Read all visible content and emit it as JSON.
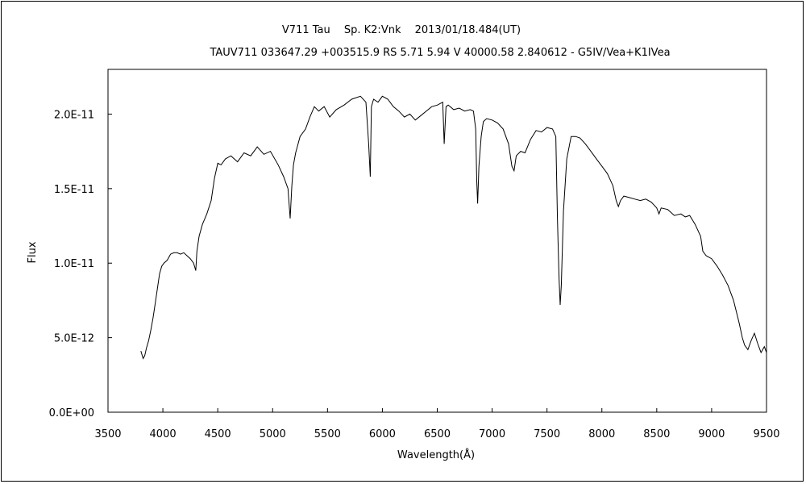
{
  "chart_data": {
    "type": "line",
    "title": "V711 Tau　 Sp. K2:Vnk　 2013/01/18.484(UT)",
    "subtitle": "TAUV711 033647.29 +003515.9 RS 5.71 5.94 V 40000.58 2.840612 - G5IV/Vea+K1IVea",
    "xlabel": "Wavelength(Å)",
    "ylabel": "Flux",
    "xlim": [
      3500,
      9500
    ],
    "ylim": [
      0,
      2.3e-11
    ],
    "x_ticks": [
      3500,
      4000,
      4500,
      5000,
      5500,
      6000,
      6500,
      7000,
      7500,
      8000,
      8500,
      9000,
      9500
    ],
    "x_tick_labels": [
      "3500",
      "4000",
      "4500",
      "5000",
      "5500",
      "6000",
      "6500",
      "7000",
      "7500",
      "8000",
      "8500",
      "9000",
      "9500"
    ],
    "y_ticks": [
      0,
      5e-12,
      1e-11,
      1.5e-11,
      2e-11
    ],
    "y_tick_labels": [
      "0.0E+00",
      "5.0E-12",
      "1.0E-11",
      "1.5E-11",
      "2.0E-11"
    ],
    "grid": false,
    "legend": "none",
    "series": [
      {
        "color": "#000000",
        "x": [
          3800,
          3820,
          3835,
          3850,
          3870,
          3890,
          3910,
          3930,
          3950,
          3970,
          3990,
          4010,
          4040,
          4070,
          4100,
          4130,
          4160,
          4190,
          4220,
          4250,
          4280,
          4300,
          4310,
          4330,
          4360,
          4400,
          4440,
          4470,
          4500,
          4530,
          4570,
          4620,
          4680,
          4740,
          4800,
          4860,
          4920,
          4980,
          5050,
          5100,
          5140,
          5160,
          5175,
          5190,
          5210,
          5250,
          5300,
          5340,
          5380,
          5420,
          5470,
          5520,
          5580,
          5650,
          5720,
          5800,
          5850,
          5875,
          5890,
          5900,
          5920,
          5960,
          6000,
          6050,
          6100,
          6150,
          6200,
          6250,
          6300,
          6350,
          6400,
          6450,
          6500,
          6550,
          6563,
          6580,
          6600,
          6650,
          6700,
          6750,
          6800,
          6830,
          6850,
          6860,
          6868,
          6880,
          6900,
          6920,
          6950,
          7000,
          7050,
          7100,
          7150,
          7180,
          7200,
          7220,
          7260,
          7300,
          7350,
          7400,
          7450,
          7500,
          7550,
          7580,
          7595,
          7610,
          7620,
          7630,
          7650,
          7680,
          7720,
          7760,
          7800,
          7850,
          7900,
          7950,
          8000,
          8050,
          8100,
          8130,
          8150,
          8170,
          8200,
          8250,
          8300,
          8350,
          8400,
          8450,
          8500,
          8520,
          8540,
          8600,
          8660,
          8720,
          8760,
          8800,
          8850,
          8900,
          8920,
          8950,
          9000,
          9050,
          9100,
          9150,
          9200,
          9250,
          9280,
          9300,
          9330,
          9360,
          9390,
          9420,
          9450,
          9480,
          9500
        ],
        "y": [
          4.1e-12,
          3.6e-12,
          3.8e-12,
          4.3e-12,
          4.8e-12,
          5.5e-12,
          6.3e-12,
          7.3e-12,
          8.3e-12,
          9.3e-12,
          9.8e-12,
          1e-11,
          1.02e-11,
          1.06e-11,
          1.07e-11,
          1.07e-11,
          1.06e-11,
          1.07e-11,
          1.05e-11,
          1.03e-11,
          1e-11,
          9.5e-12,
          1.08e-11,
          1.18e-11,
          1.26e-11,
          1.33e-11,
          1.42e-11,
          1.57e-11,
          1.67e-11,
          1.66e-11,
          1.7e-11,
          1.72e-11,
          1.68e-11,
          1.74e-11,
          1.72e-11,
          1.78e-11,
          1.73e-11,
          1.75e-11,
          1.66e-11,
          1.58e-11,
          1.5e-11,
          1.3e-11,
          1.52e-11,
          1.66e-11,
          1.74e-11,
          1.85e-11,
          1.9e-11,
          1.98e-11,
          2.05e-11,
          2.02e-11,
          2.05e-11,
          1.98e-11,
          2.03e-11,
          2.06e-11,
          2.1e-11,
          2.12e-11,
          2.08e-11,
          1.8e-11,
          1.58e-11,
          2.05e-11,
          2.1e-11,
          2.08e-11,
          2.12e-11,
          2.1e-11,
          2.05e-11,
          2.02e-11,
          1.98e-11,
          2e-11,
          1.96e-11,
          1.99e-11,
          2.02e-11,
          2.05e-11,
          2.06e-11,
          2.08e-11,
          1.8e-11,
          2.05e-11,
          2.06e-11,
          2.03e-11,
          2.04e-11,
          2.02e-11,
          2.03e-11,
          2.02e-11,
          1.9e-11,
          1.55e-11,
          1.4e-11,
          1.65e-11,
          1.85e-11,
          1.95e-11,
          1.97e-11,
          1.96e-11,
          1.94e-11,
          1.9e-11,
          1.8e-11,
          1.65e-11,
          1.62e-11,
          1.72e-11,
          1.75e-11,
          1.74e-11,
          1.83e-11,
          1.89e-11,
          1.88e-11,
          1.91e-11,
          1.9e-11,
          1.85e-11,
          1.3e-11,
          9e-12,
          7.2e-12,
          8.5e-12,
          1.35e-11,
          1.7e-11,
          1.85e-11,
          1.85e-11,
          1.84e-11,
          1.8e-11,
          1.75e-11,
          1.7e-11,
          1.65e-11,
          1.6e-11,
          1.52e-11,
          1.42e-11,
          1.38e-11,
          1.42e-11,
          1.45e-11,
          1.44e-11,
          1.43e-11,
          1.42e-11,
          1.43e-11,
          1.41e-11,
          1.37e-11,
          1.33e-11,
          1.37e-11,
          1.36e-11,
          1.32e-11,
          1.33e-11,
          1.31e-11,
          1.32e-11,
          1.26e-11,
          1.18e-11,
          1.08e-11,
          1.05e-11,
          1.03e-11,
          9.8e-12,
          9.2e-12,
          8.5e-12,
          7.5e-12,
          6e-12,
          5e-12,
          4.5e-12,
          4.2e-12,
          4.8e-12,
          5.3e-12,
          4.6e-12,
          4e-12,
          4.4e-12,
          4e-12
        ]
      }
    ]
  }
}
